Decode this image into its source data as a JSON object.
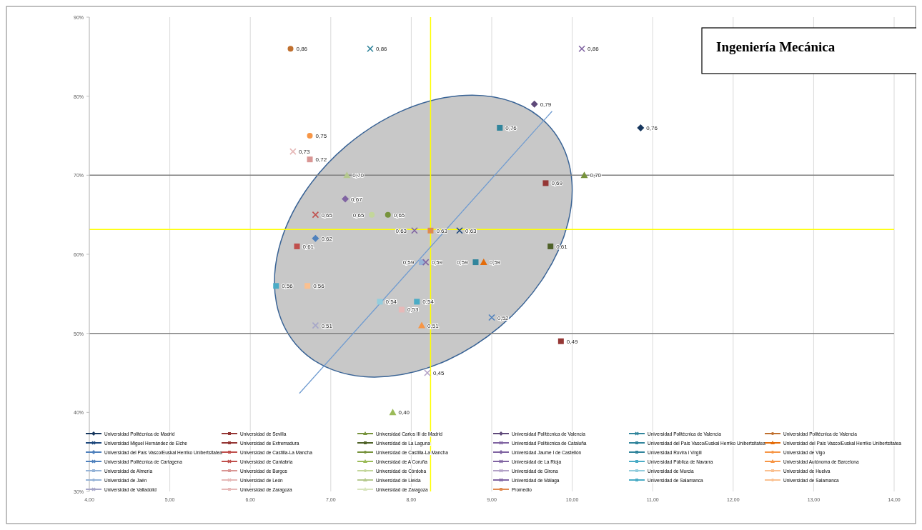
{
  "chart_data": {
    "type": "scatter",
    "title": "Ingeniería Mecánica",
    "xlim": [
      4,
      14
    ],
    "xticks": [
      {
        "value": 4,
        "label": "4,00"
      },
      {
        "value": 5,
        "label": "5,00"
      },
      {
        "value": 6,
        "label": "6,00"
      },
      {
        "value": 7,
        "label": "7,00"
      },
      {
        "value": 8,
        "label": "8,00"
      },
      {
        "value": 9,
        "label": "9,00"
      },
      {
        "value": 10,
        "label": "10,00"
      },
      {
        "value": 11,
        "label": "11,00"
      },
      {
        "value": 12,
        "label": "12,00"
      },
      {
        "value": 13,
        "label": "13,00"
      },
      {
        "value": 14,
        "label": "14,00"
      }
    ],
    "ylim": [
      0.3,
      0.9
    ],
    "yticks": [
      {
        "value": 0.3,
        "label": "30%"
      },
      {
        "value": 0.4,
        "label": "40%"
      },
      {
        "value": 0.5,
        "label": "50%"
      },
      {
        "value": 0.6,
        "label": "60%"
      },
      {
        "value": 0.7,
        "label": "70%"
      },
      {
        "value": 0.8,
        "label": "80%"
      },
      {
        "value": 0.9,
        "label": "90%"
      }
    ],
    "grid": "x",
    "legend": "bottom",
    "ref_lines": [
      {
        "axis": "y",
        "value": 0.7,
        "color": "#808080"
      },
      {
        "axis": "y",
        "value": 0.5,
        "color": "#808080"
      },
      {
        "axis": "x",
        "value": 8.24,
        "color": "#ffff00"
      },
      {
        "axis": "y",
        "value": 0.6315,
        "color": "#ffff00"
      }
    ],
    "series": [
      {
        "name": "Universidad Politécnica de Madrid",
        "color": "#17375e",
        "marker": "diamond",
        "x": [
          10.85
        ],
        "values": [
          0.76
        ],
        "value_labels": [
          "0,76"
        ]
      },
      {
        "name": "Universidad de Sevilla",
        "color": "#953735",
        "marker": "square",
        "x": [
          9.86
        ],
        "values": [
          0.49
        ],
        "value_labels": [
          "0,49"
        ]
      },
      {
        "name": "Universidad Carlos III de Madrid",
        "color": "#77933c",
        "marker": "triangle",
        "x": [
          10.15
        ],
        "values": [
          0.7
        ],
        "value_labels": [
          "0,70"
        ]
      },
      {
        "name": "Universidad Politécnica de Valencia",
        "color": "#5f497a",
        "marker": "diamond",
        "x": [
          9.53
        ],
        "values": [
          0.79
        ],
        "value_labels": [
          "0,79"
        ]
      },
      {
        "name": "Universidad Politécnica de Valencia",
        "color": "#31859c",
        "marker": "cross",
        "x": [
          7.49
        ],
        "values": [
          0.86
        ],
        "value_labels": [
          "0,86"
        ]
      },
      {
        "name": "Universidad Politécnica de Valencia",
        "color": "#c0702f",
        "marker": "circle",
        "x": [
          6.5
        ],
        "values": [
          0.86
        ],
        "value_labels": [
          "0,86"
        ]
      },
      {
        "name": "Universidad Miguel Hernández de Elche",
        "color": "#1f497d",
        "marker": "cross",
        "x": [
          8.6
        ],
        "values": [
          0.63
        ],
        "value_labels": [
          "0,63"
        ]
      },
      {
        "name": "Universidad de Extremadura",
        "color": "#953735",
        "marker": "square",
        "x": [
          9.67
        ],
        "values": [
          0.69
        ],
        "value_labels": [
          "0,69"
        ]
      },
      {
        "name": "Universidad de La Laguna",
        "color": "#4f6228",
        "marker": "square",
        "x": [
          9.73
        ],
        "values": [
          0.61
        ],
        "value_labels": [
          "0,61"
        ]
      },
      {
        "name": "Universidad Politécnica de Cataluña",
        "color": "#8064a2",
        "marker": "cross",
        "x": [
          8.04
        ],
        "values": [
          0.63
        ],
        "value_labels": [
          "0,63"
        ]
      },
      {
        "name": "Universidad del País Vasco/Euskal Herriko Unibertsitatea",
        "color": "#31859c",
        "marker": "square",
        "x": [
          9.1
        ],
        "values": [
          0.76
        ],
        "value_labels": [
          "0,76"
        ]
      },
      {
        "name": "Universidad del País Vasco/Euskal Herriko Unibertsitatea",
        "color": "#e46c0a",
        "marker": "triangle",
        "x": [
          8.9
        ],
        "values": [
          0.59
        ],
        "value_labels": [
          "0,59"
        ]
      },
      {
        "name": "Universidad del País Vasco/Euskal Herriko Unibertsitatea",
        "color": "#4f81bd",
        "marker": "diamond",
        "x": [
          6.81
        ],
        "values": [
          0.62
        ],
        "value_labels": [
          "0,62"
        ]
      },
      {
        "name": "Universidad de Castilla-La Mancha",
        "color": "#c0504d",
        "marker": "square",
        "x": [
          6.58
        ],
        "values": [
          0.61
        ],
        "value_labels": [
          "0,61"
        ]
      },
      {
        "name": "Universidad de Castilla-La Mancha",
        "color": "#77933c",
        "marker": "circle",
        "x": [
          7.71
        ],
        "values": [
          0.65
        ],
        "value_labels": [
          "0,65"
        ]
      },
      {
        "name": "Universidad Jaume I de Castellón",
        "color": "#8064a2",
        "marker": "diamond",
        "x": [
          7.18
        ],
        "values": [
          0.67
        ],
        "value_labels": [
          "0,67"
        ]
      },
      {
        "name": "Universidad Rovira i Virgili",
        "color": "#31859c",
        "marker": "square",
        "x": [
          8.8
        ],
        "values": [
          0.59
        ],
        "value_labels": [
          "0,59"
        ]
      },
      {
        "name": "Universidad de Vigo",
        "color": "#f79646",
        "marker": "circle",
        "x": [
          6.74
        ],
        "values": [
          0.75
        ],
        "value_labels": [
          "0,75"
        ]
      },
      {
        "name": "Universidad Politécnica de Cartagena",
        "color": "#4f81bd",
        "marker": "cross",
        "x": [
          9.0
        ],
        "values": [
          0.52
        ],
        "value_labels": [
          "0,52"
        ]
      },
      {
        "name": "Universidad de Cantabria",
        "color": "#c0504d",
        "marker": "cross",
        "x": [
          6.81
        ],
        "values": [
          0.65
        ],
        "value_labels": [
          "0,65"
        ]
      },
      {
        "name": "Universidad de A Coruña",
        "color": "#9bbb59",
        "marker": "triangle",
        "x": [
          7.77
        ],
        "values": [
          0.4
        ],
        "value_labels": [
          "0,40"
        ]
      },
      {
        "name": "Universidad de La Rioja",
        "color": "#8064a2",
        "marker": "cross",
        "x": [
          10.12
        ],
        "values": [
          0.86
        ],
        "value_labels": [
          "0,86"
        ]
      },
      {
        "name": "Universidad Pública de Navarra",
        "color": "#4bacc6",
        "marker": "square",
        "x": [
          6.32
        ],
        "values": [
          0.56
        ],
        "value_labels": [
          "0,56"
        ]
      },
      {
        "name": "Universidad Autónoma de Barcelona",
        "color": "#f79646",
        "marker": "triangle",
        "x": [
          8.13
        ],
        "values": [
          0.51
        ],
        "value_labels": [
          "0,51"
        ]
      },
      {
        "name": "Universidad de Almería",
        "color": "#95b3d7",
        "marker": "square",
        "x": [
          8.13
        ],
        "values": [
          0.59
        ],
        "value_labels": [
          "0,59"
        ]
      },
      {
        "name": "Universidad de Burgos",
        "color": "#d99694",
        "marker": "square",
        "x": [
          6.74
        ],
        "values": [
          0.72
        ],
        "value_labels": [
          "0,72"
        ]
      },
      {
        "name": "Universidad de Córdoba",
        "color": "#c3d69b",
        "marker": "circle",
        "x": [
          7.51
        ],
        "values": [
          0.65
        ],
        "value_labels": [
          "0,65"
        ]
      },
      {
        "name": "Universidad de Girona",
        "color": "#b3a2c7",
        "marker": "cross",
        "x": [
          8.2
        ],
        "values": [
          0.45
        ],
        "value_labels": [
          "0,45"
        ]
      },
      {
        "name": "Universidad de Murcia",
        "color": "#93cddd",
        "marker": "square",
        "x": [
          7.61
        ],
        "values": [
          0.54
        ],
        "value_labels": [
          "0,54"
        ]
      },
      {
        "name": "Universidad de Huelva",
        "color": "#fac090",
        "marker": "square",
        "x": [
          6.71
        ],
        "values": [
          0.56
        ],
        "value_labels": [
          "0,56"
        ]
      },
      {
        "name": "Universidad de Jaén",
        "color": "#95b3d7",
        "marker": "circle",
        "x": [
          null
        ],
        "values": [
          null
        ]
      },
      {
        "name": "Universidad de León",
        "color": "#e6b9b8",
        "marker": "cross",
        "x": [
          6.53
        ],
        "values": [
          0.73
        ],
        "value_labels": [
          "0,73"
        ]
      },
      {
        "name": "Universidad de Lleida",
        "color": "#b5c98e",
        "marker": "triangle",
        "x": [
          7.2
        ],
        "values": [
          0.7
        ],
        "value_labels": [
          "0,70"
        ]
      },
      {
        "name": "Universidad de Málaga",
        "color": "#8064a2",
        "marker": "cross",
        "x": [
          8.18
        ],
        "values": [
          0.59
        ],
        "value_labels": [
          "0,59"
        ]
      },
      {
        "name": "Universidad de Salamanca",
        "color": "#4bacc6",
        "marker": "square",
        "x": [
          8.07
        ],
        "values": [
          0.54
        ],
        "value_labels": [
          "0,54"
        ]
      },
      {
        "name": "Universidad de Salamanca",
        "color": "#fac090",
        "marker": "circle",
        "x": [
          null
        ],
        "values": [
          null
        ]
      },
      {
        "name": "Universidad de Valladolid",
        "color": "#a6a6c8",
        "marker": "cross",
        "x": [
          6.81
        ],
        "values": [
          0.51
        ],
        "value_labels": [
          "0,51"
        ]
      },
      {
        "name": "Universidad de Zaragoza",
        "color": "#e6b9b8",
        "marker": "square",
        "x": [
          7.88
        ],
        "values": [
          0.53
        ],
        "value_labels": [
          "0,53"
        ]
      },
      {
        "name": "Universidad de Zaragoza",
        "color": "#d7e4bd",
        "marker": "triangle",
        "x": [
          null
        ],
        "values": [
          null
        ]
      },
      {
        "name": "Promedio",
        "color": "#e08a50",
        "marker": "square",
        "x": [
          8.24
        ],
        "values": [
          0.63
        ],
        "value_labels": [
          "0,63"
        ]
      },
      {
        "type": "line",
        "color": "#6f9bd0",
        "x": [
          6.61,
          9.75
        ],
        "values": [
          0.424,
          0.781
        ]
      }
    ]
  }
}
